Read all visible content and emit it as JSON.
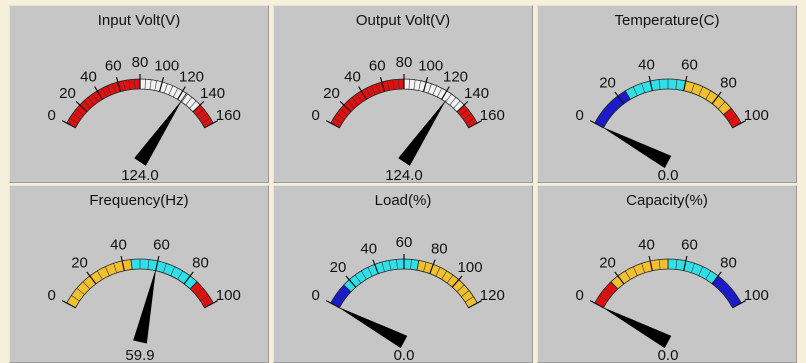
{
  "gauges": [
    {
      "title": "Input Volt(V)",
      "min": 0,
      "max": 160,
      "ticks": [
        0,
        20,
        40,
        60,
        80,
        100,
        120,
        140,
        160
      ],
      "value": 124.0,
      "value_text": "124.0",
      "bands": [
        {
          "from": 0,
          "to": 80,
          "color": "#e01010"
        },
        {
          "from": 80,
          "to": 124,
          "color": "#f2f2f2"
        },
        {
          "from": 124,
          "to": 140,
          "color": "#f2f2f2"
        },
        {
          "from": 140,
          "to": 160,
          "color": "#e01010"
        }
      ]
    },
    {
      "title": "Output Volt(V)",
      "min": 0,
      "max": 160,
      "ticks": [
        0,
        20,
        40,
        60,
        80,
        100,
        120,
        140,
        160
      ],
      "value": 124.0,
      "value_text": "124.0",
      "bands": [
        {
          "from": 0,
          "to": 80,
          "color": "#e01010"
        },
        {
          "from": 80,
          "to": 140,
          "color": "#f2f2f2"
        },
        {
          "from": 140,
          "to": 160,
          "color": "#e01010"
        }
      ]
    },
    {
      "title": "Temperature(C)",
      "min": 0,
      "max": 100,
      "ticks": [
        0,
        20,
        40,
        60,
        80,
        100
      ],
      "value": 0.0,
      "value_text": "0.0",
      "bands": [
        {
          "from": 0,
          "to": 25,
          "color": "#1a1ad0"
        },
        {
          "from": 25,
          "to": 60,
          "color": "#30e0e8"
        },
        {
          "from": 60,
          "to": 90,
          "color": "#f0c030"
        },
        {
          "from": 90,
          "to": 100,
          "color": "#e01010"
        }
      ]
    },
    {
      "title": "Frequency(Hz)",
      "min": 0,
      "max": 100,
      "ticks": [
        0,
        20,
        40,
        60,
        80,
        100
      ],
      "value": 59.9,
      "value_text": "59.9",
      "bands": [
        {
          "from": 0,
          "to": 45,
          "color": "#f0c030"
        },
        {
          "from": 45,
          "to": 85,
          "color": "#30e0e8"
        },
        {
          "from": 85,
          "to": 100,
          "color": "#e01010"
        }
      ]
    },
    {
      "title": "Load(%)",
      "min": 0,
      "max": 120,
      "ticks": [
        0,
        20,
        40,
        60,
        80,
        100,
        120
      ],
      "value": 0.0,
      "value_text": "0.0",
      "bands": [
        {
          "from": 0,
          "to": 15,
          "color": "#1a1ad0"
        },
        {
          "from": 15,
          "to": 70,
          "color": "#30e0e8"
        },
        {
          "from": 70,
          "to": 120,
          "color": "#f0c030"
        }
      ]
    },
    {
      "title": "Capacity(%)",
      "min": 0,
      "max": 100,
      "ticks": [
        0,
        20,
        40,
        60,
        80,
        100
      ],
      "value": 0.0,
      "value_text": "0.0",
      "bands": [
        {
          "from": 0,
          "to": 15,
          "color": "#e01010"
        },
        {
          "from": 15,
          "to": 50,
          "color": "#f0c030"
        },
        {
          "from": 50,
          "to": 80,
          "color": "#30e0e8"
        },
        {
          "from": 80,
          "to": 100,
          "color": "#1a1ad0"
        }
      ]
    }
  ]
}
